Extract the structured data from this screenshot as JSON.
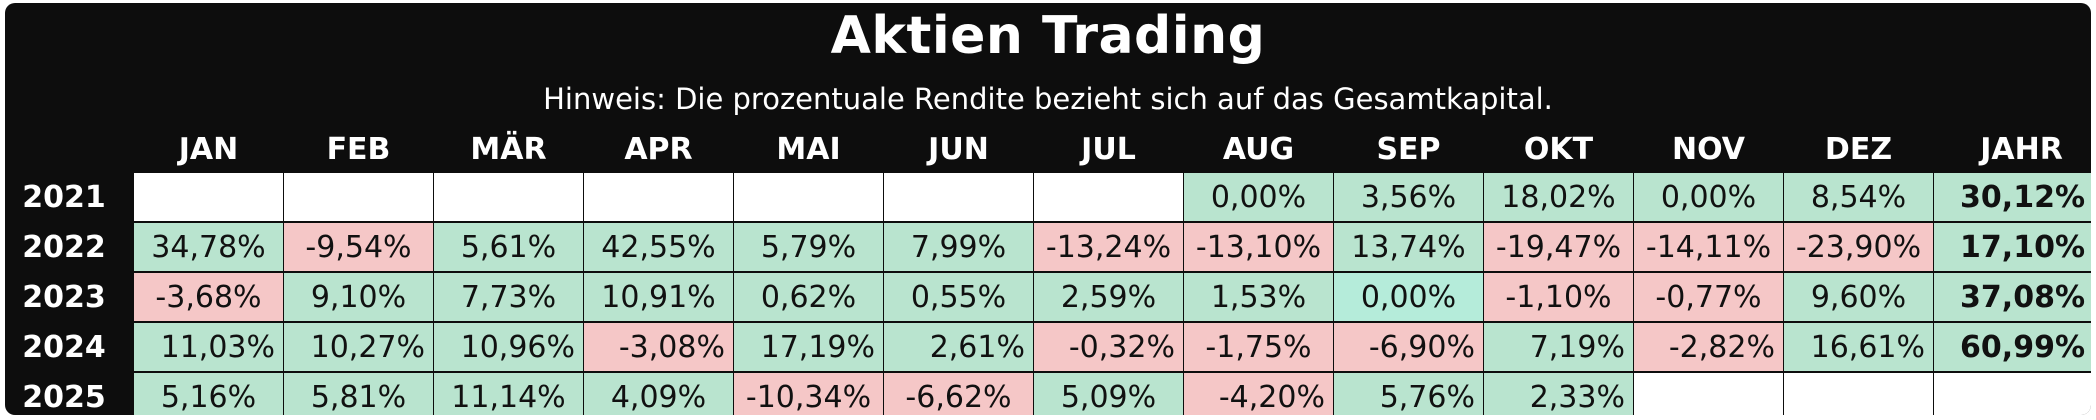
{
  "title": "Aktien Trading",
  "note": "Hinweis: Die prozentuale Rendite bezieht sich auf das Gesamtkapital.",
  "header": [
    "JAN",
    "FEB",
    "MÄR",
    "APR",
    "MAI",
    "JUN",
    "JUL",
    "AUG",
    "SEP",
    "OKT",
    "NOV",
    "DEZ",
    "JAHR"
  ],
  "colors": {
    "positive": "#b9e4cf",
    "negative": "#f5c7c7",
    "neutral": "#b5ecda",
    "empty": "#ffffff",
    "background": "#0d0d0d"
  },
  "rows": [
    {
      "year": "2021",
      "months": [
        {
          "v": "",
          "t": "empty"
        },
        {
          "v": "",
          "t": "empty"
        },
        {
          "v": "",
          "t": "empty"
        },
        {
          "v": "",
          "t": "empty"
        },
        {
          "v": "",
          "t": "empty"
        },
        {
          "v": "",
          "t": "empty"
        },
        {
          "v": "",
          "t": "empty"
        },
        {
          "v": "0,00%",
          "t": "pos"
        },
        {
          "v": "3,56%",
          "t": "pos"
        },
        {
          "v": "18,02%",
          "t": "pos"
        },
        {
          "v": "0,00%",
          "t": "pos"
        },
        {
          "v": "8,54%",
          "t": "pos"
        }
      ],
      "total": "30,12%"
    },
    {
      "year": "2022",
      "months": [
        {
          "v": "34,78%",
          "t": "pos"
        },
        {
          "v": "-9,54%",
          "t": "neg"
        },
        {
          "v": "5,61%",
          "t": "pos"
        },
        {
          "v": "42,55%",
          "t": "pos"
        },
        {
          "v": "5,79%",
          "t": "pos"
        },
        {
          "v": "7,99%",
          "t": "pos"
        },
        {
          "v": "-13,24%",
          "t": "neg"
        },
        {
          "v": "-13,10%",
          "t": "neg"
        },
        {
          "v": "13,74%",
          "t": "pos"
        },
        {
          "v": "-19,47%",
          "t": "neg"
        },
        {
          "v": "-14,11%",
          "t": "neg"
        },
        {
          "v": "-23,90%",
          "t": "neg"
        }
      ],
      "total": "17,10%"
    },
    {
      "year": "2023",
      "months": [
        {
          "v": "-3,68%",
          "t": "neg"
        },
        {
          "v": "9,10%",
          "t": "pos"
        },
        {
          "v": "7,73%",
          "t": "pos"
        },
        {
          "v": "10,91%",
          "t": "pos"
        },
        {
          "v": "0,62%",
          "t": "pos"
        },
        {
          "v": "0,55%",
          "t": "pos"
        },
        {
          "v": "2,59%",
          "t": "pos"
        },
        {
          "v": "1,53%",
          "t": "pos"
        },
        {
          "v": "0,00%",
          "t": "neu"
        },
        {
          "v": "-1,10%",
          "t": "neg"
        },
        {
          "v": "-0,77%",
          "t": "neg"
        },
        {
          "v": "9,60%",
          "t": "pos"
        }
      ],
      "total": "37,08%"
    },
    {
      "year": "2024",
      "months": [
        {
          "v": "11,03%",
          "t": "pos",
          "r": true
        },
        {
          "v": "10,27%",
          "t": "pos",
          "r": true
        },
        {
          "v": "10,96%",
          "t": "pos",
          "r": true
        },
        {
          "v": "-3,08%",
          "t": "neg",
          "r": true
        },
        {
          "v": "17,19%",
          "t": "pos",
          "r": true
        },
        {
          "v": "2,61%",
          "t": "pos",
          "r": true
        },
        {
          "v": "-0,32%",
          "t": "neg",
          "r": true
        },
        {
          "v": "-1,75%",
          "t": "neg"
        },
        {
          "v": "-6,90%",
          "t": "neg",
          "r": true
        },
        {
          "v": "7,19%",
          "t": "pos",
          "r": true
        },
        {
          "v": "-2,82%",
          "t": "neg",
          "r": true
        },
        {
          "v": "16,61%",
          "t": "pos",
          "r": true
        }
      ],
      "total": "60,99%"
    },
    {
      "year": "2025",
      "months": [
        {
          "v": "5,16%",
          "t": "pos"
        },
        {
          "v": "5,81%",
          "t": "pos"
        },
        {
          "v": "11,14%",
          "t": "pos"
        },
        {
          "v": "4,09%",
          "t": "pos"
        },
        {
          "v": "-10,34%",
          "t": "neg"
        },
        {
          "v": "-6,62%",
          "t": "neg"
        },
        {
          "v": "5,09%",
          "t": "pos"
        },
        {
          "v": "-4,20%",
          "t": "neg",
          "r": true
        },
        {
          "v": "5,76%",
          "t": "pos",
          "r": true
        },
        {
          "v": "2,33%",
          "t": "pos",
          "r": true
        },
        {
          "v": "",
          "t": "empty"
        },
        {
          "v": "",
          "t": "empty"
        }
      ],
      "total": ""
    }
  ]
}
